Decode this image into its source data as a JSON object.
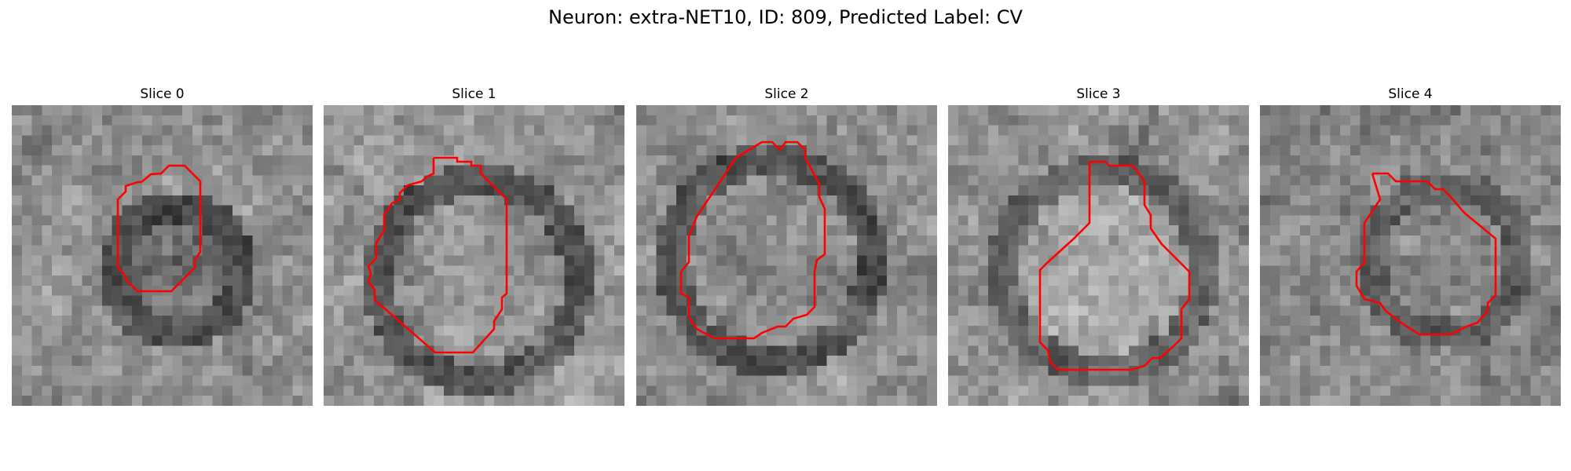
{
  "figure": {
    "title": "Neuron: extra-NET10, ID: 809, Predicted Label: CV"
  },
  "slices": [
    {
      "label": "Slice 0"
    },
    {
      "label": "Slice 1"
    },
    {
      "label": "Slice 2"
    },
    {
      "label": "Slice 3"
    },
    {
      "label": "Slice 4"
    }
  ],
  "colors": {
    "contour": "#ff0000",
    "background": "#ffffff"
  },
  "colormap": "gray"
}
